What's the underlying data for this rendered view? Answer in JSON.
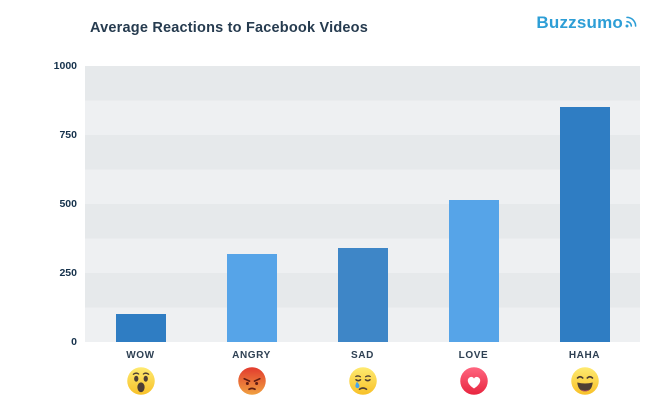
{
  "header": {
    "title": "Average Reactions to Facebook Videos",
    "brand": "Buzzsumo"
  },
  "chart_data": {
    "type": "bar",
    "title": "Average Reactions to Facebook Videos",
    "categories": [
      "WOW",
      "ANGRY",
      "SAD",
      "LOVE",
      "HAHA"
    ],
    "values": [
      100,
      320,
      340,
      515,
      850
    ],
    "bar_colors": [
      "#2f7dc3",
      "#56a4e8",
      "#3e86c7",
      "#56a4e8",
      "#2f7dc3"
    ],
    "icons": [
      "wow-emoji",
      "angry-emoji",
      "sad-emoji",
      "love-emoji",
      "haha-emoji"
    ],
    "xlabel": "",
    "ylabel": "",
    "ylim": [
      0,
      1000
    ],
    "yticks": [
      0,
      250,
      500,
      750,
      1000
    ],
    "grid": "horizontal-striped-bands",
    "legend": false
  },
  "colors": {
    "accent_blue": "#2d9ed6",
    "bar_dark": "#2f7dc3",
    "bar_light": "#56a4e8",
    "band_dark": "#e6e9eb",
    "band_light": "#eef0f2",
    "text_navy": "#16324c"
  }
}
